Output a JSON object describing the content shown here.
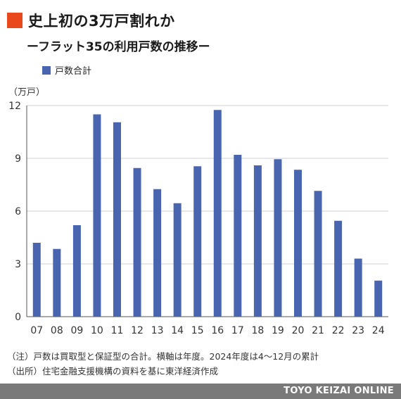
{
  "header": {
    "title": "史上初の3万戸割れか",
    "subtitle": "ーフラット35の利用戸数の推移ー",
    "accent_color": "#e8481c"
  },
  "chart_data": {
    "type": "bar",
    "categories": [
      "07",
      "08",
      "09",
      "10",
      "11",
      "12",
      "13",
      "14",
      "15",
      "16",
      "17",
      "18",
      "19",
      "20",
      "21",
      "22",
      "23",
      "24"
    ],
    "series": [
      {
        "name": "戸数合計",
        "color": "#4a65b0",
        "values": [
          4.2,
          3.85,
          5.2,
          11.5,
          11.05,
          8.45,
          7.25,
          6.45,
          8.55,
          11.75,
          9.2,
          8.6,
          8.95,
          8.35,
          7.15,
          5.45,
          3.3,
          2.05
        ]
      }
    ],
    "yticks": [
      0,
      3,
      6,
      9,
      12
    ],
    "ylim": [
      0,
      12
    ],
    "ylabel": "（万戸）",
    "grid": true,
    "legend": "top-left"
  },
  "notes": [
    "（注）戸数は買取型と保証型の合計。横軸は年度。2024年度は4〜12月の累計",
    "（出所）住宅金融支援機構の資料を基に東洋経済作成"
  ],
  "footer": {
    "brand": "TOYO KEIZAI ONLINE"
  }
}
